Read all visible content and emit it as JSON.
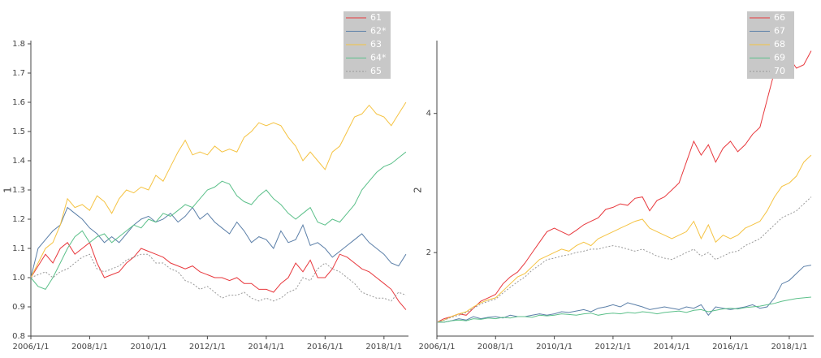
{
  "chart_data": [
    {
      "type": "line",
      "ylabel": "1",
      "x": [
        "2006/1/1",
        "2006/4/1",
        "2006/7/1",
        "2006/10/1",
        "2007/1/1",
        "2007/4/1",
        "2007/7/1",
        "2007/10/1",
        "2008/1/1",
        "2008/4/1",
        "2008/7/1",
        "2008/10/1",
        "2009/1/1",
        "2009/4/1",
        "2009/7/1",
        "2009/10/1",
        "2010/1/1",
        "2010/4/1",
        "2010/7/1",
        "2010/10/1",
        "2011/1/1",
        "2011/4/1",
        "2011/7/1",
        "2011/10/1",
        "2012/1/1",
        "2012/4/1",
        "2012/7/1",
        "2012/10/1",
        "2013/1/1",
        "2013/4/1",
        "2013/7/1",
        "2013/10/1",
        "2014/1/1",
        "2014/4/1",
        "2014/7/1",
        "2014/10/1",
        "2015/1/1",
        "2015/4/1",
        "2015/7/1",
        "2015/10/1",
        "2016/1/1",
        "2016/4/1",
        "2016/7/1",
        "2016/10/1",
        "2017/1/1",
        "2017/4/1",
        "2017/7/1",
        "2017/10/1",
        "2018/1/1",
        "2018/4/1",
        "2018/7/1",
        "2018/10/1"
      ],
      "xlim": [
        "2006/1/1",
        "2018/11/1"
      ],
      "xticks": [
        "2006/1/1",
        "2008/1/1",
        "2010/1/1",
        "2012/1/1",
        "2014/1/1",
        "2016/1/1",
        "2018/1/1"
      ],
      "ylim": [
        0.8,
        1.8
      ],
      "yticks": [
        0.8,
        0.9,
        {
          "value": 1,
          "label": "1.0"
        },
        1.1,
        1.2,
        1.3,
        1.4,
        1.5,
        1.6,
        1.7,
        1.8
      ],
      "legend": "upper right",
      "series": [
        {
          "name": "61",
          "color": "#e8383d",
          "style": "solid",
          "values": [
            1.0,
            1.04,
            1.08,
            1.05,
            1.1,
            1.12,
            1.08,
            1.1,
            1.12,
            1.05,
            1.0,
            1.01,
            1.02,
            1.05,
            1.07,
            1.1,
            1.09,
            1.08,
            1.07,
            1.05,
            1.04,
            1.03,
            1.04,
            1.02,
            1.01,
            1.0,
            1.0,
            0.99,
            1.0,
            0.98,
            0.98,
            0.96,
            0.96,
            0.95,
            0.98,
            1.0,
            1.05,
            1.02,
            1.06,
            1.0,
            1.0,
            1.03,
            1.08,
            1.07,
            1.05,
            1.03,
            1.02,
            1.0,
            0.98,
            0.96,
            0.92,
            0.89
          ]
        },
        {
          "name": "62*",
          "color": "#5b7fa8",
          "style": "solid",
          "values": [
            1.0,
            1.1,
            1.13,
            1.16,
            1.18,
            1.24,
            1.22,
            1.2,
            1.17,
            1.15,
            1.12,
            1.14,
            1.12,
            1.15,
            1.18,
            1.2,
            1.21,
            1.19,
            1.2,
            1.22,
            1.19,
            1.21,
            1.24,
            1.2,
            1.22,
            1.19,
            1.17,
            1.15,
            1.19,
            1.16,
            1.12,
            1.14,
            1.13,
            1.1,
            1.16,
            1.12,
            1.13,
            1.18,
            1.11,
            1.12,
            1.1,
            1.07,
            1.09,
            1.11,
            1.13,
            1.15,
            1.12,
            1.1,
            1.08,
            1.05,
            1.04,
            1.08
          ]
        },
        {
          "name": "63",
          "color": "#f5c342",
          "style": "solid",
          "values": [
            1.0,
            1.05,
            1.1,
            1.12,
            1.18,
            1.27,
            1.24,
            1.25,
            1.23,
            1.28,
            1.26,
            1.22,
            1.27,
            1.3,
            1.29,
            1.31,
            1.3,
            1.35,
            1.33,
            1.38,
            1.43,
            1.47,
            1.42,
            1.43,
            1.42,
            1.45,
            1.43,
            1.44,
            1.43,
            1.48,
            1.5,
            1.53,
            1.52,
            1.53,
            1.52,
            1.48,
            1.45,
            1.4,
            1.43,
            1.4,
            1.37,
            1.43,
            1.45,
            1.5,
            1.55,
            1.56,
            1.59,
            1.56,
            1.55,
            1.52,
            1.56,
            1.6
          ]
        },
        {
          "name": "64*",
          "color": "#5cc08a",
          "style": "solid",
          "values": [
            1.0,
            0.97,
            0.96,
            1.0,
            1.05,
            1.1,
            1.14,
            1.16,
            1.12,
            1.14,
            1.15,
            1.12,
            1.14,
            1.16,
            1.18,
            1.17,
            1.2,
            1.19,
            1.22,
            1.21,
            1.23,
            1.25,
            1.24,
            1.27,
            1.3,
            1.31,
            1.33,
            1.32,
            1.28,
            1.26,
            1.25,
            1.28,
            1.3,
            1.27,
            1.25,
            1.22,
            1.2,
            1.22,
            1.24,
            1.19,
            1.18,
            1.2,
            1.19,
            1.22,
            1.25,
            1.3,
            1.33,
            1.36,
            1.38,
            1.39,
            1.41,
            1.43
          ]
        },
        {
          "name": "65",
          "color": "#999999",
          "style": "dotted",
          "values": [
            1.0,
            1.01,
            1.02,
            1.0,
            1.02,
            1.03,
            1.05,
            1.07,
            1.08,
            1.03,
            1.02,
            1.03,
            1.04,
            1.06,
            1.07,
            1.08,
            1.08,
            1.05,
            1.05,
            1.03,
            1.02,
            0.99,
            0.98,
            0.96,
            0.97,
            0.95,
            0.93,
            0.94,
            0.94,
            0.95,
            0.93,
            0.92,
            0.93,
            0.92,
            0.93,
            0.95,
            0.96,
            1.0,
            0.99,
            1.03,
            1.05,
            1.03,
            1.02,
            1.0,
            0.98,
            0.95,
            0.94,
            0.93,
            0.93,
            0.92,
            0.95,
            0.94
          ]
        }
      ]
    },
    {
      "type": "line",
      "ylabel": "2",
      "x": [
        "2006/1/1",
        "2006/4/1",
        "2006/7/1",
        "2006/10/1",
        "2007/1/1",
        "2007/4/1",
        "2007/7/1",
        "2007/10/1",
        "2008/1/1",
        "2008/4/1",
        "2008/7/1",
        "2008/10/1",
        "2009/1/1",
        "2009/4/1",
        "2009/7/1",
        "2009/10/1",
        "2010/1/1",
        "2010/4/1",
        "2010/7/1",
        "2010/10/1",
        "2011/1/1",
        "2011/4/1",
        "2011/7/1",
        "2011/10/1",
        "2012/1/1",
        "2012/4/1",
        "2012/7/1",
        "2012/10/1",
        "2013/1/1",
        "2013/4/1",
        "2013/7/1",
        "2013/10/1",
        "2014/1/1",
        "2014/4/1",
        "2014/7/1",
        "2014/10/1",
        "2015/1/1",
        "2015/4/1",
        "2015/7/1",
        "2015/10/1",
        "2016/1/1",
        "2016/4/1",
        "2016/7/1",
        "2016/10/1",
        "2017/1/1",
        "2017/4/1",
        "2017/7/1",
        "2017/10/1",
        "2018/1/1",
        "2018/4/1",
        "2018/7/1",
        "2018/10/1"
      ],
      "xlim": [
        "2006/1/1",
        "2018/11/1"
      ],
      "xticks": [
        "2006/1/1",
        "2008/1/1",
        "2010/1/1",
        "2012/1/1",
        "2014/1/1",
        "2016/1/1",
        "2018/1/1"
      ],
      "ylim": [
        0.8,
        5
      ],
      "yticks": [
        2,
        4
      ],
      "legend": "upper right",
      "series": [
        {
          "name": "66",
          "color": "#e8383d",
          "style": "solid",
          "values": [
            1.0,
            1.05,
            1.08,
            1.12,
            1.1,
            1.2,
            1.3,
            1.35,
            1.4,
            1.55,
            1.65,
            1.72,
            1.85,
            2.0,
            2.15,
            2.3,
            2.35,
            2.3,
            2.25,
            2.32,
            2.4,
            2.45,
            2.5,
            2.62,
            2.65,
            2.7,
            2.68,
            2.78,
            2.8,
            2.6,
            2.75,
            2.8,
            2.9,
            3.0,
            3.3,
            3.6,
            3.4,
            3.55,
            3.3,
            3.5,
            3.6,
            3.45,
            3.55,
            3.7,
            3.8,
            4.2,
            4.6,
            4.7,
            4.8,
            4.65,
            4.7,
            4.9
          ]
        },
        {
          "name": "67",
          "color": "#5b7fa8",
          "style": "solid",
          "values": [
            1.0,
            1.0,
            1.02,
            1.05,
            1.03,
            1.08,
            1.05,
            1.07,
            1.08,
            1.06,
            1.1,
            1.08,
            1.08,
            1.1,
            1.12,
            1.1,
            1.12,
            1.15,
            1.14,
            1.16,
            1.18,
            1.15,
            1.2,
            1.22,
            1.25,
            1.22,
            1.28,
            1.25,
            1.22,
            1.18,
            1.2,
            1.22,
            1.2,
            1.18,
            1.22,
            1.2,
            1.25,
            1.1,
            1.22,
            1.2,
            1.18,
            1.2,
            1.22,
            1.25,
            1.2,
            1.22,
            1.35,
            1.55,
            1.6,
            1.7,
            1.8,
            1.82
          ]
        },
        {
          "name": "68",
          "color": "#f5c342",
          "style": "solid",
          "values": [
            1.0,
            1.03,
            1.08,
            1.12,
            1.15,
            1.22,
            1.28,
            1.32,
            1.35,
            1.45,
            1.55,
            1.65,
            1.7,
            1.8,
            1.9,
            1.95,
            2.0,
            2.05,
            2.02,
            2.1,
            2.15,
            2.1,
            2.2,
            2.25,
            2.3,
            2.35,
            2.4,
            2.45,
            2.48,
            2.35,
            2.3,
            2.25,
            2.2,
            2.25,
            2.3,
            2.45,
            2.2,
            2.4,
            2.15,
            2.25,
            2.2,
            2.25,
            2.35,
            2.4,
            2.45,
            2.6,
            2.8,
            2.95,
            3.0,
            3.1,
            3.3,
            3.4
          ]
        },
        {
          "name": "69",
          "color": "#5cc08a",
          "style": "solid",
          "values": [
            1.0,
            1.0,
            1.02,
            1.03,
            1.02,
            1.05,
            1.04,
            1.06,
            1.05,
            1.07,
            1.06,
            1.08,
            1.08,
            1.07,
            1.1,
            1.09,
            1.1,
            1.12,
            1.11,
            1.1,
            1.12,
            1.13,
            1.1,
            1.12,
            1.13,
            1.12,
            1.14,
            1.13,
            1.15,
            1.14,
            1.12,
            1.14,
            1.15,
            1.16,
            1.14,
            1.17,
            1.18,
            1.15,
            1.17,
            1.19,
            1.2,
            1.19,
            1.21,
            1.22,
            1.23,
            1.25,
            1.27,
            1.3,
            1.32,
            1.34,
            1.35,
            1.36
          ]
        },
        {
          "name": "70",
          "color": "#999999",
          "style": "dotted",
          "values": [
            1.0,
            1.03,
            1.07,
            1.1,
            1.14,
            1.2,
            1.26,
            1.3,
            1.33,
            1.42,
            1.5,
            1.58,
            1.65,
            1.75,
            1.82,
            1.9,
            1.92,
            1.95,
            1.97,
            2.0,
            2.02,
            2.05,
            2.05,
            2.08,
            2.1,
            2.08,
            2.05,
            2.02,
            2.05,
            2.0,
            1.95,
            1.92,
            1.9,
            1.95,
            2.0,
            2.05,
            1.95,
            2.0,
            1.9,
            1.95,
            2.0,
            2.02,
            2.1,
            2.15,
            2.2,
            2.3,
            2.4,
            2.5,
            2.55,
            2.6,
            2.7,
            2.8
          ]
        }
      ]
    }
  ]
}
